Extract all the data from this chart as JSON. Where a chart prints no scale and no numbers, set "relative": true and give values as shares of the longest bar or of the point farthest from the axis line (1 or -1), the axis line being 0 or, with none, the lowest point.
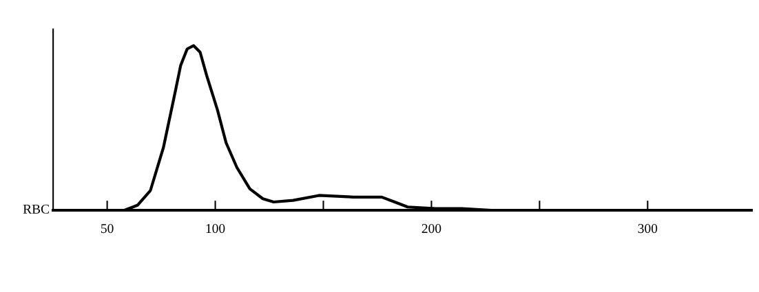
{
  "chart_data": {
    "type": "line",
    "ylabel": "RBC",
    "relative": true,
    "xlim": [
      25,
      348
    ],
    "xticks": [
      50,
      100,
      {
        "value": 150,
        "label": null
      },
      200,
      {
        "value": 250,
        "label": null
      },
      300
    ],
    "series": [
      {
        "color": "#000000",
        "x": [
          58,
          64,
          70,
          76,
          81,
          84,
          87,
          90,
          93,
          96,
          101,
          105,
          110,
          116,
          122,
          127,
          136,
          148,
          164,
          177,
          183,
          189,
          202,
          214,
          227
        ],
        "values": [
          0,
          0.03,
          0.12,
          0.38,
          0.69,
          0.88,
          0.98,
          1.0,
          0.96,
          0.82,
          0.61,
          0.41,
          0.26,
          0.13,
          0.07,
          0.05,
          0.06,
          0.09,
          0.08,
          0.08,
          0.05,
          0.02,
          0.01,
          0.01,
          0
        ]
      }
    ],
    "grid": false,
    "marker": "none",
    "line_style": "solid"
  }
}
